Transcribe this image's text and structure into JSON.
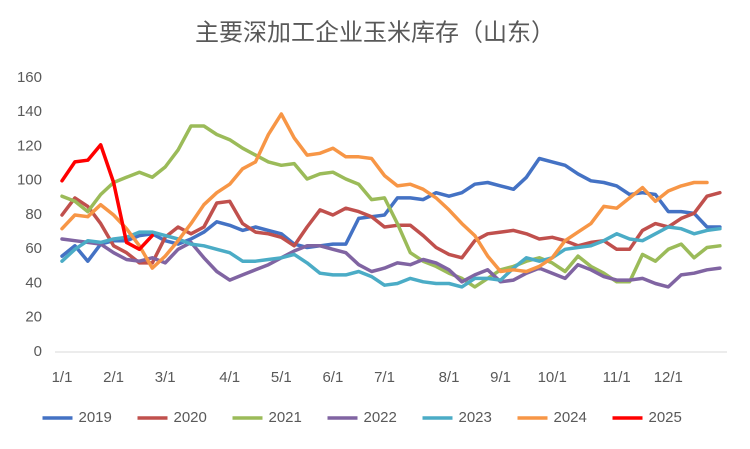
{
  "chart_data": {
    "type": "line",
    "title": "主要深加工企业玉米库存（山东）",
    "categories": [
      "1/1",
      null,
      null,
      null,
      "2/1",
      null,
      null,
      null,
      "3/1",
      null,
      null,
      null,
      null,
      "4/1",
      null,
      null,
      null,
      "5/1",
      null,
      null,
      null,
      "6/1",
      null,
      null,
      null,
      "7/1",
      null,
      null,
      null,
      null,
      "8/1",
      null,
      null,
      null,
      "9/1",
      null,
      null,
      null,
      "10/1",
      null,
      null,
      null,
      null,
      "11/1",
      null,
      null,
      null,
      "12/1",
      null,
      null,
      null,
      null
    ],
    "ylim": [
      0,
      160
    ],
    "yticks": [
      0,
      20,
      40,
      60,
      80,
      100,
      120,
      140,
      160
    ],
    "grid": false,
    "legend": "bottom",
    "series": [
      {
        "name": "2019",
        "color": "#4472c4",
        "values": [
          56,
          62,
          53,
          63,
          65,
          65,
          68,
          69,
          65,
          63,
          66,
          70,
          76,
          74,
          71,
          73,
          71,
          69,
          63,
          61,
          62,
          63,
          63,
          78,
          79,
          80,
          90,
          90,
          89,
          93,
          91,
          93,
          98,
          99,
          97,
          95,
          102,
          113,
          111,
          109,
          104,
          100,
          99,
          97,
          92,
          93,
          92,
          82,
          82,
          81,
          73,
          73
        ]
      },
      {
        "name": "2020",
        "color": "#c0504d",
        "values": [
          80,
          90,
          85,
          75,
          62,
          58,
          52,
          52,
          67,
          73,
          69,
          73,
          87,
          88,
          75,
          70,
          69,
          67,
          62,
          73,
          83,
          80,
          84,
          82,
          79,
          73,
          74,
          74,
          68,
          61,
          57,
          55,
          65,
          69,
          70,
          71,
          69,
          66,
          67,
          65,
          62,
          64,
          65,
          60,
          60,
          71,
          75,
          73,
          78,
          81,
          91,
          93
        ]
      },
      {
        "name": "2021",
        "color": "#9bbb59",
        "values": [
          91,
          88,
          82,
          92,
          99,
          102,
          105,
          102,
          108,
          118,
          132,
          132,
          127,
          124,
          119,
          115,
          111,
          109,
          110,
          101,
          104,
          105,
          101,
          98,
          89,
          90,
          75,
          58,
          53,
          50,
          46,
          43,
          38,
          43,
          48,
          50,
          53,
          55,
          52,
          47,
          56,
          50,
          46,
          41,
          41,
          57,
          53,
          60,
          63,
          55,
          61,
          62
        ]
      },
      {
        "name": "2022",
        "color": "#8064a2",
        "values": [
          66,
          65,
          64,
          63,
          58,
          54,
          53,
          55,
          52,
          60,
          64,
          55,
          47,
          42,
          45,
          48,
          51,
          55,
          59,
          62,
          62,
          60,
          58,
          51,
          47,
          49,
          52,
          51,
          54,
          52,
          48,
          41,
          45,
          48,
          41,
          42,
          46,
          49,
          46,
          43,
          51,
          48,
          44,
          42,
          42,
          43,
          40,
          38,
          45,
          46,
          48,
          49
        ]
      },
      {
        "name": "2023",
        "color": "#4bacc6",
        "values": [
          53,
          60,
          65,
          64,
          66,
          67,
          70,
          70,
          68,
          66,
          63,
          62,
          60,
          58,
          53,
          53,
          54,
          55,
          57,
          52,
          46,
          45,
          45,
          47,
          44,
          39,
          40,
          43,
          41,
          40,
          40,
          38,
          43,
          43,
          42,
          49,
          55,
          53,
          55,
          60,
          61,
          62,
          65,
          69,
          66,
          65,
          69,
          73,
          72,
          69,
          71,
          72
        ]
      },
      {
        "name": "2024",
        "color": "#f79646",
        "values": [
          72,
          80,
          79,
          86,
          80,
          72,
          62,
          49,
          56,
          65,
          75,
          86,
          93,
          98,
          107,
          111,
          127,
          139,
          125,
          115,
          116,
          119,
          114,
          114,
          113,
          103,
          97,
          98,
          95,
          90,
          83,
          75,
          68,
          56,
          47,
          48,
          47,
          50,
          55,
          65,
          70,
          75,
          85,
          84,
          90,
          96,
          88,
          94,
          97,
          99,
          99,
          null
        ]
      },
      {
        "name": "2025",
        "color": "#ff0000",
        "values": [
          100,
          111,
          112,
          121,
          99,
          64,
          60,
          68,
          null,
          null,
          null,
          null,
          null,
          null,
          null,
          null,
          null,
          null,
          null,
          null,
          null,
          null,
          null,
          null,
          null,
          null,
          null,
          null,
          null,
          null,
          null,
          null,
          null,
          null,
          null,
          null,
          null,
          null,
          null,
          null,
          null,
          null,
          null,
          null,
          null,
          null,
          null,
          null,
          null,
          null,
          null,
          null
        ]
      }
    ]
  }
}
